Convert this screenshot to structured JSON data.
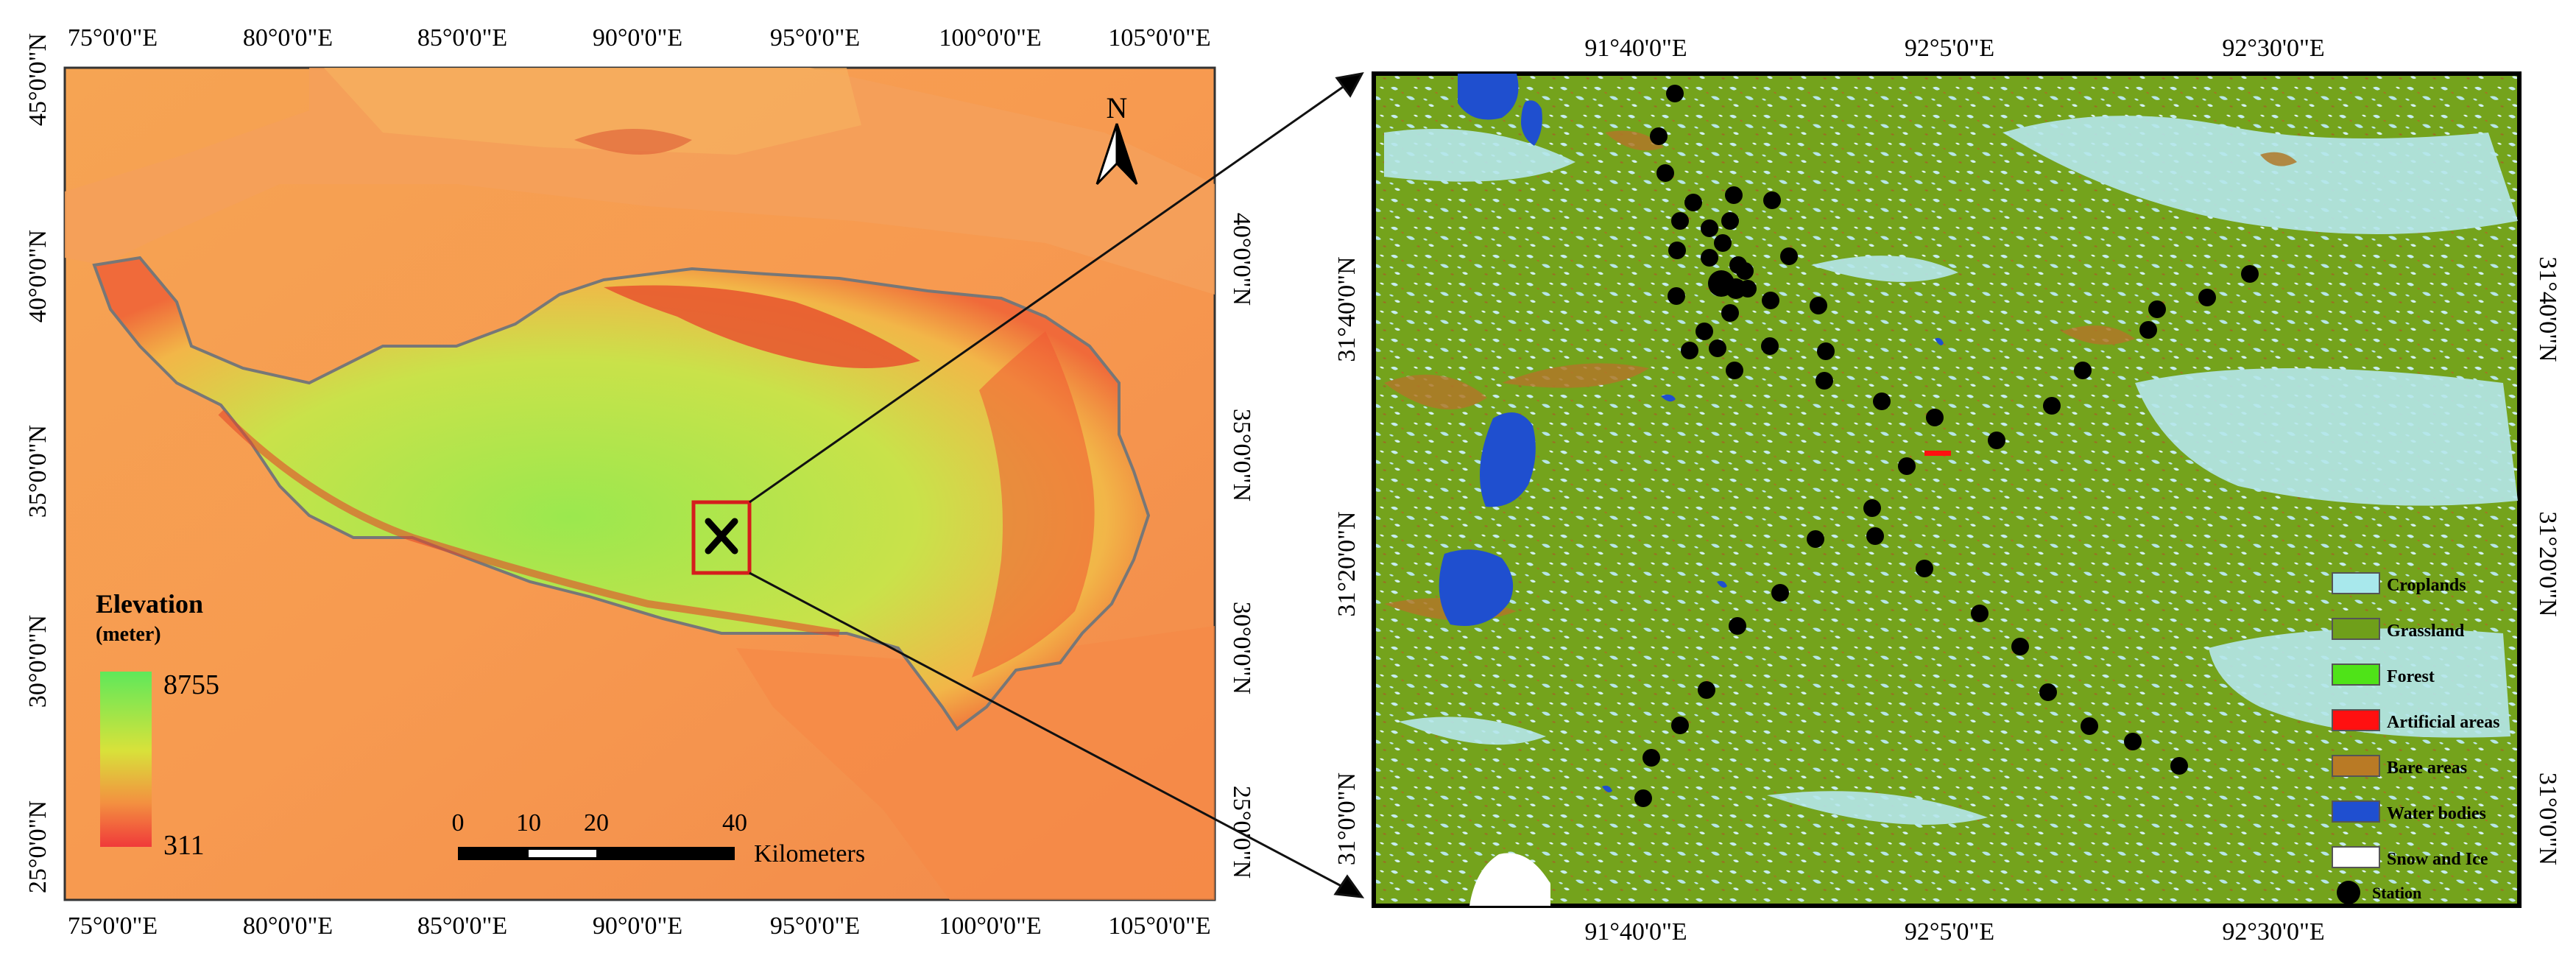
{
  "left_map": {
    "top_lon_labels": [
      "75°0'0\"E",
      "80°0'0\"E",
      "85°0'0\"E",
      "90°0'0\"E",
      "95°0'0\"E",
      "100°0'0\"E",
      "105°0'0\"E"
    ],
    "bottom_lon_labels": [
      "75°0'0\"E",
      "80°0'0\"E",
      "85°0'0\"E",
      "90°0'0\"E",
      "95°0'0\"E",
      "100°0'0\"E",
      "105°0'0\"E"
    ],
    "left_lat_labels": [
      "45°0'0\"N",
      "40°0'0\"N",
      "35°0'0\"N",
      "30°0'0\"N",
      "25°0'0\"N"
    ],
    "right_lat_labels": [
      "40°0'0\"N",
      "35°0'0\"N",
      "30°0'0\"N",
      "25°0'0\"N"
    ],
    "north_arrow": "N",
    "legend": {
      "title": "Elevation",
      "unit": "(meter)",
      "max": "8755",
      "min": "311"
    },
    "scale_bar": {
      "ticks": [
        "0",
        "10",
        "20",
        "40"
      ],
      "unit": "Kilometers"
    }
  },
  "right_map": {
    "top_lon_labels": [
      "91°40'0\"E",
      "92°5'0\"E",
      "92°30'0\"E"
    ],
    "bottom_lon_labels": [
      "91°40'0\"E",
      "92°5'0\"E",
      "92°30'0\"E"
    ],
    "left_lat_labels": [
      "31°40'0\"N",
      "31°20'0\"N",
      "31°0'0\"N"
    ],
    "right_lat_labels": [
      "31°40'0\"N",
      "31°20'0\"N",
      "31°0'0\"N"
    ],
    "legend": [
      {
        "label": "Croplands",
        "color": "#a8e8ec"
      },
      {
        "label": "Grassland",
        "color": "#6f9f1a"
      },
      {
        "label": "Forest",
        "color": "#4fe318"
      },
      {
        "label": "Artificial areas",
        "color": "#ff1010"
      },
      {
        "label": "Bare areas",
        "color": "#b97a25"
      },
      {
        "label": "Water bodies",
        "color": "#1f4fd0"
      },
      {
        "label": "Snow and Ice",
        "color": "#ffffff"
      },
      {
        "label": "Station",
        "color": "#000000"
      }
    ]
  }
}
